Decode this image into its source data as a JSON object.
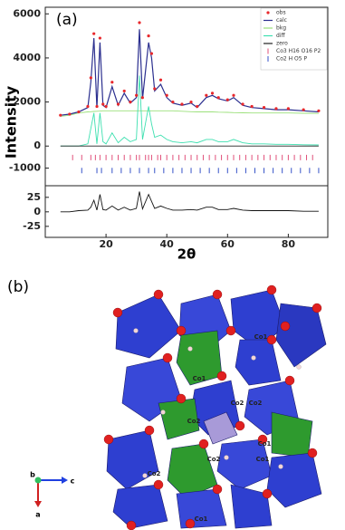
{
  "chart_data": {
    "type": "line",
    "annotation": "(a)",
    "x_label": "2θ",
    "y_label": "Intensity",
    "x": [
      5,
      8,
      11,
      14,
      15,
      16,
      17,
      18,
      19,
      20,
      22,
      24,
      26,
      28,
      30,
      31,
      32,
      34,
      35,
      36,
      38,
      40,
      42,
      45,
      48,
      50,
      53,
      55,
      57,
      60,
      62,
      65,
      68,
      72,
      76,
      80,
      85,
      90
    ],
    "xlim": [
      0,
      93
    ],
    "xticks": [
      20,
      40,
      60,
      80
    ],
    "ylim": [
      -1800,
      6300
    ],
    "yticks": [
      -1000,
      0,
      2000,
      4000,
      6000
    ],
    "y2lim": [
      -44,
      45
    ],
    "y2ticks": [
      -25,
      0,
      25
    ],
    "series": [
      {
        "name": "obs",
        "color": "#e8282c",
        "style": "points",
        "values": [
          1400,
          1450,
          1550,
          1800,
          3100,
          5100,
          1800,
          4900,
          1900,
          1800,
          2900,
          1900,
          2500,
          2000,
          2300,
          5600,
          2200,
          5000,
          4200,
          2600,
          3000,
          2300,
          2000,
          1900,
          2000,
          1800,
          2300,
          2400,
          2200,
          2100,
          2300,
          1900,
          1800,
          1750,
          1700,
          1700,
          1650,
          1600
        ]
      },
      {
        "name": "calc",
        "color": "#2b2f8f",
        "style": "line",
        "values": [
          1400,
          1450,
          1550,
          1750,
          2900,
          4900,
          1750,
          4700,
          1850,
          1750,
          2700,
          1850,
          2400,
          1950,
          2200,
          5300,
          2150,
          4700,
          4000,
          2500,
          2800,
          2200,
          1950,
          1850,
          1950,
          1750,
          2200,
          2300,
          2150,
          2050,
          2200,
          1850,
          1750,
          1700,
          1650,
          1650,
          1600,
          1550
        ]
      },
      {
        "name": "bkg",
        "color": "#9be07a",
        "style": "line",
        "values": [
          1350,
          1400,
          1500,
          1550,
          1560,
          1570,
          1580,
          1590,
          1600,
          1600,
          1600,
          1600,
          1600,
          1600,
          1600,
          1600,
          1600,
          1600,
          1600,
          1600,
          1600,
          1600,
          1600,
          1580,
          1560,
          1550,
          1550,
          1550,
          1540,
          1530,
          1520,
          1510,
          1500,
          1500,
          1500,
          1500,
          1490,
          1480
        ]
      },
      {
        "name": "diff",
        "color": "#3ee0b0",
        "style": "line",
        "values": [
          0,
          0,
          0,
          100,
          800,
          1500,
          100,
          1500,
          200,
          100,
          600,
          150,
          400,
          200,
          300,
          3200,
          300,
          1800,
          1000,
          400,
          500,
          300,
          200,
          150,
          200,
          150,
          300,
          300,
          200,
          200,
          300,
          150,
          100,
          100,
          80,
          80,
          60,
          50
        ]
      },
      {
        "name": "zero",
        "color": "#222222",
        "style": "line",
        "values": [
          0,
          0,
          0,
          0,
          0,
          0,
          0,
          0,
          0,
          0,
          0,
          0,
          0,
          0,
          0,
          0,
          0,
          0,
          0,
          0,
          0,
          0,
          0,
          0,
          0,
          0,
          0,
          0,
          0,
          0,
          0,
          0,
          0,
          0,
          0,
          0,
          0,
          0
        ]
      },
      {
        "color": "#111111",
        "style": "line",
        "axis": "y2",
        "values": [
          0,
          0,
          2,
          3,
          8,
          20,
          3,
          30,
          4,
          3,
          10,
          3,
          8,
          3,
          6,
          35,
          5,
          30,
          18,
          6,
          10,
          6,
          3,
          3,
          4,
          3,
          8,
          8,
          4,
          4,
          6,
          3,
          2,
          2,
          2,
          2,
          1,
          1
        ]
      }
    ],
    "reflections": [
      {
        "name": "Co3 H16 O16 P2",
        "color": "#e0507a",
        "positions": [
          9,
          12,
          15,
          16.5,
          18,
          20,
          22,
          24,
          26,
          28,
          30,
          31,
          33,
          34,
          35,
          37,
          38,
          40,
          42,
          44,
          46,
          48,
          50,
          52,
          54,
          56,
          58,
          60,
          62,
          64,
          66,
          68,
          70,
          72,
          74,
          76,
          78,
          80,
          82,
          84,
          86,
          88
        ]
      },
      {
        "name": "Co2 H O5 P",
        "color": "#3552c8",
        "positions": [
          12,
          17,
          18.5,
          22,
          25,
          28,
          31,
          34,
          36,
          39,
          42,
          45,
          48,
          51,
          54,
          57,
          60,
          63,
          66,
          69,
          72,
          75,
          78,
          81,
          84,
          87,
          90
        ]
      }
    ]
  },
  "structure": {
    "label": "(b)",
    "atom_labels": [
      "Co1",
      "Co1",
      "Co2",
      "Co2",
      "Co2",
      "Co2",
      "Co1",
      "Co1",
      "Co2",
      "Co1"
    ],
    "axes": [
      "b",
      "c",
      "a"
    ]
  }
}
